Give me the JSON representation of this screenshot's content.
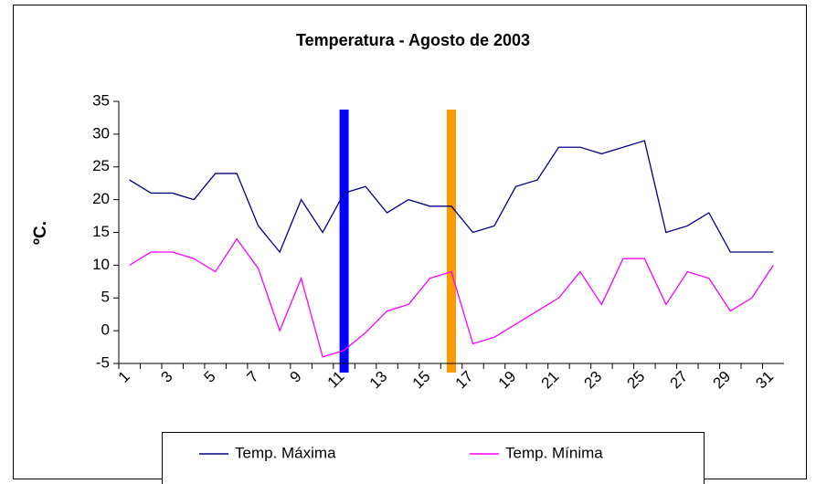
{
  "chart_data": {
    "type": "line",
    "title": "Temperatura - Agosto de 2003",
    "ylabel": "ºC.",
    "categories": [
      "1",
      null,
      "3",
      null,
      "5",
      null,
      "7",
      null,
      "9",
      null,
      "11",
      null,
      "13",
      null,
      "15",
      null,
      "17",
      null,
      "19",
      null,
      "21",
      null,
      "23",
      null,
      "25",
      null,
      "27",
      null,
      "29",
      null,
      "31"
    ],
    "series": [
      {
        "name": "Temp. Máxima",
        "color": "#000080",
        "values": [
          23,
          21,
          21,
          20,
          24,
          24,
          16,
          12,
          20,
          15,
          21,
          22,
          18,
          20,
          19,
          19,
          15,
          16,
          22,
          23,
          28,
          28,
          27,
          28,
          29,
          15,
          16,
          18,
          12,
          12,
          12
        ]
      },
      {
        "name": "Temp. Mínima",
        "color": "#ff00ff",
        "values": [
          10,
          12,
          12,
          11,
          9,
          14,
          9.5,
          0,
          8,
          -4,
          -3,
          -0.3,
          3,
          4,
          8,
          9,
          -2,
          -1,
          1,
          3,
          5,
          9,
          4,
          11,
          11,
          4,
          9,
          8,
          3,
          5,
          10
        ]
      }
    ],
    "highlights": [
      {
        "x": 11,
        "color": "#0000ff"
      },
      {
        "x": 16,
        "color": "#ff9900"
      }
    ],
    "ylim": [
      -5,
      35
    ],
    "yticks": [
      -5,
      0,
      5,
      10,
      15,
      20,
      25,
      30,
      35
    ],
    "grid": false,
    "legend": "bottom"
  }
}
